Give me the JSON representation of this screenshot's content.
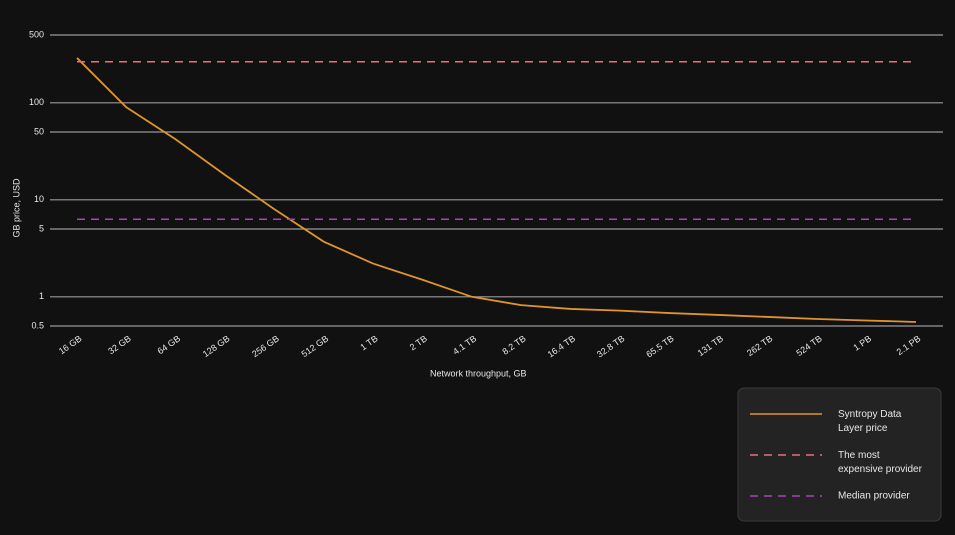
{
  "chart_data": {
    "type": "line",
    "x_label": "Network throughput, GB",
    "y_label": "GB price, USD",
    "categories": [
      "16 GB",
      "32 GB",
      "64 GB",
      "128 GB",
      "256 GB",
      "512 GB",
      "1 TB",
      "2 TB",
      "4.1 TB",
      "8.2 TB",
      "16.4 TB",
      "32.8 TB",
      "65.5 TB",
      "131 TB",
      "262 TB",
      "524 TB",
      "1 PB",
      "2.1 PB"
    ],
    "series": [
      {
        "name": "Syntropy Data Layer price",
        "color": "#e0952a",
        "dash": false,
        "values": [
          290,
          90,
          42,
          18,
          8,
          3.7,
          2.2,
          1.5,
          1.0,
          0.82,
          0.75,
          0.72,
          0.68,
          0.65,
          0.62,
          0.59,
          0.57,
          0.55
        ]
      },
      {
        "name": "The most expensive provider",
        "color": "#e8707a",
        "dash": true,
        "values": [
          265,
          265,
          265,
          265,
          265,
          265,
          265,
          265,
          265,
          265,
          265,
          265,
          265,
          265,
          265,
          265,
          265,
          265
        ]
      },
      {
        "name": "Median provider",
        "color": "#b040c0",
        "dash": true,
        "values": [
          6.3,
          6.3,
          6.3,
          6.3,
          6.3,
          6.3,
          6.3,
          6.3,
          6.3,
          6.3,
          6.3,
          6.3,
          6.3,
          6.3,
          6.3,
          6.3,
          6.3,
          6.3
        ]
      }
    ],
    "ylim": [
      0.5,
      500
    ],
    "yticks": [
      0.5,
      1,
      5,
      10,
      50,
      100,
      500
    ],
    "log_y": true,
    "grid": true
  }
}
